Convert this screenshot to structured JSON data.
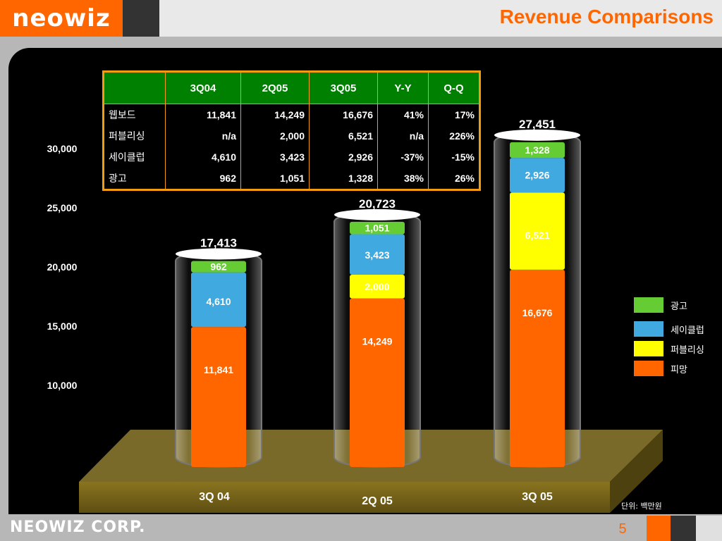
{
  "header": {
    "logo": "neowiz",
    "title": "Revenue Comparisons"
  },
  "footer": {
    "logo": "NEOWIZ CORP.",
    "page_number": "5"
  },
  "table": {
    "columns": [
      "3Q04",
      "2Q05",
      "3Q05",
      "Y-Y",
      "Q-Q"
    ],
    "rows": [
      {
        "label": "웹보드",
        "values": [
          "11,841",
          "14,249",
          "16,676",
          "41%",
          "17%"
        ]
      },
      {
        "label": "퍼블리싱",
        "values": [
          "n/a",
          "2,000",
          "6,521",
          "n/a",
          "226%"
        ]
      },
      {
        "label": "세이클럽",
        "values": [
          "4,610",
          "3,423",
          "2,926",
          "-37%",
          "-15%"
        ]
      },
      {
        "label": "광고",
        "values": [
          "962",
          "1,051",
          "1,328",
          "38%",
          "26%"
        ]
      }
    ]
  },
  "chart_data": {
    "type": "bar",
    "stacked": true,
    "categories": [
      "3Q 04",
      "2Q 05",
      "3Q 05"
    ],
    "totals": [
      17413,
      20723,
      27451
    ],
    "total_labels": [
      "17,413",
      "20,723",
      "27,451"
    ],
    "series": [
      {
        "name": "피망",
        "color": "#ff6600",
        "values": [
          11841,
          14249,
          16676
        ],
        "labels": [
          "11,841",
          "14,249",
          "16,676"
        ]
      },
      {
        "name": "퍼블리싱",
        "color": "#ffff00",
        "values": [
          0,
          2000,
          6521
        ],
        "labels": [
          "",
          "2,000",
          "6,521"
        ]
      },
      {
        "name": "세이클럽",
        "color": "#3fa9e0",
        "values": [
          4610,
          3423,
          2926
        ],
        "labels": [
          "4,610",
          "3,423",
          "2,926"
        ]
      },
      {
        "name": "광고",
        "color": "#66cc33",
        "values": [
          962,
          1051,
          1328
        ],
        "labels": [
          "962",
          "1,051",
          "1,328"
        ]
      }
    ],
    "legend_order": [
      "광고",
      "세이클럽",
      "퍼블리싱",
      "피망"
    ],
    "yticks": [
      10000,
      15000,
      20000,
      25000,
      30000
    ],
    "ytick_labels": [
      "10,000",
      "15,000",
      "20,000",
      "25,000",
      "30,000"
    ],
    "unit_label": "단위: 백만원",
    "legend_position": "right"
  }
}
